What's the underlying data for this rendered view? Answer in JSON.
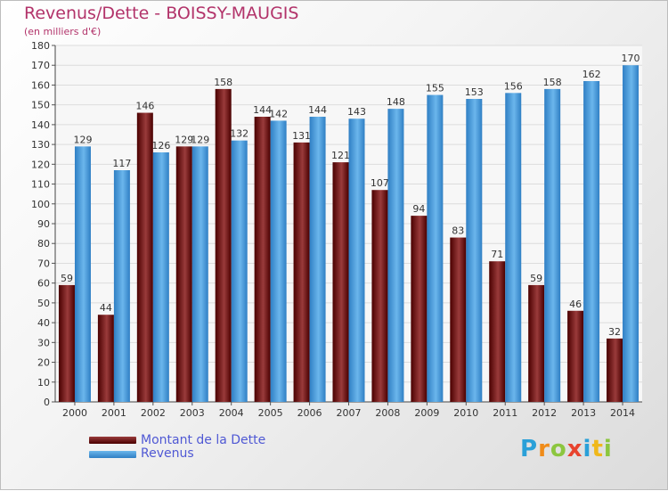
{
  "header": {
    "title": "Revenus/Dette - BOISSY-MAUGIS",
    "subtitle": "(en milliers d'€)"
  },
  "legend": {
    "debt_label": "Montant de la Dette",
    "revenue_label": "Revenus"
  },
  "logo": {
    "text": "Proxiti"
  },
  "colors": {
    "debt_dark": "#4a0000",
    "debt_light": "#9a3b3b",
    "revenue_dark": "#2f7fc4",
    "revenue_light": "#6bb6ec",
    "title": "#b2336a",
    "legend_text": "#4f58d4",
    "logo_p": "#2aa0d8",
    "logo_r": "#f08c1a",
    "logo_o": "#8cc63f",
    "logo_x": "#e8432e",
    "logo_i": "#2aa0d8",
    "logo_t": "#f0b81a",
    "logo_i2": "#8cc63f"
  },
  "chart_data": {
    "type": "bar",
    "title": "Revenus/Dette - BOISSY-MAUGIS",
    "ylabel": "(en milliers d'€)",
    "xlabel": "",
    "categories": [
      "2000",
      "2001",
      "2002",
      "2003",
      "2004",
      "2005",
      "2006",
      "2007",
      "2008",
      "2009",
      "2010",
      "2011",
      "2012",
      "2013",
      "2014"
    ],
    "series": [
      {
        "name": "Montant de la Dette",
        "values": [
          59,
          44,
          146,
          129,
          158,
          144,
          131,
          121,
          107,
          94,
          83,
          71,
          59,
          46,
          32
        ]
      },
      {
        "name": "Revenus",
        "values": [
          129,
          117,
          126,
          129,
          132,
          142,
          144,
          143,
          148,
          155,
          153,
          156,
          158,
          162,
          170
        ]
      }
    ],
    "data_labels": {
      "Montant de la Dette": [
        "59",
        "44",
        "146",
        "129",
        "158",
        "144",
        "131",
        "121",
        "107",
        "94",
        "83",
        "71",
        "59",
        "46",
        "32"
      ],
      "Revenus": [
        "129",
        "117",
        "126",
        "129",
        "132",
        "142",
        "144",
        "143",
        "148",
        "155",
        "153",
        "156",
        "158",
        "162",
        "170"
      ]
    },
    "ylim": [
      0,
      180
    ],
    "ytick_step": 10,
    "grid": true,
    "legend": "bottom-left"
  }
}
